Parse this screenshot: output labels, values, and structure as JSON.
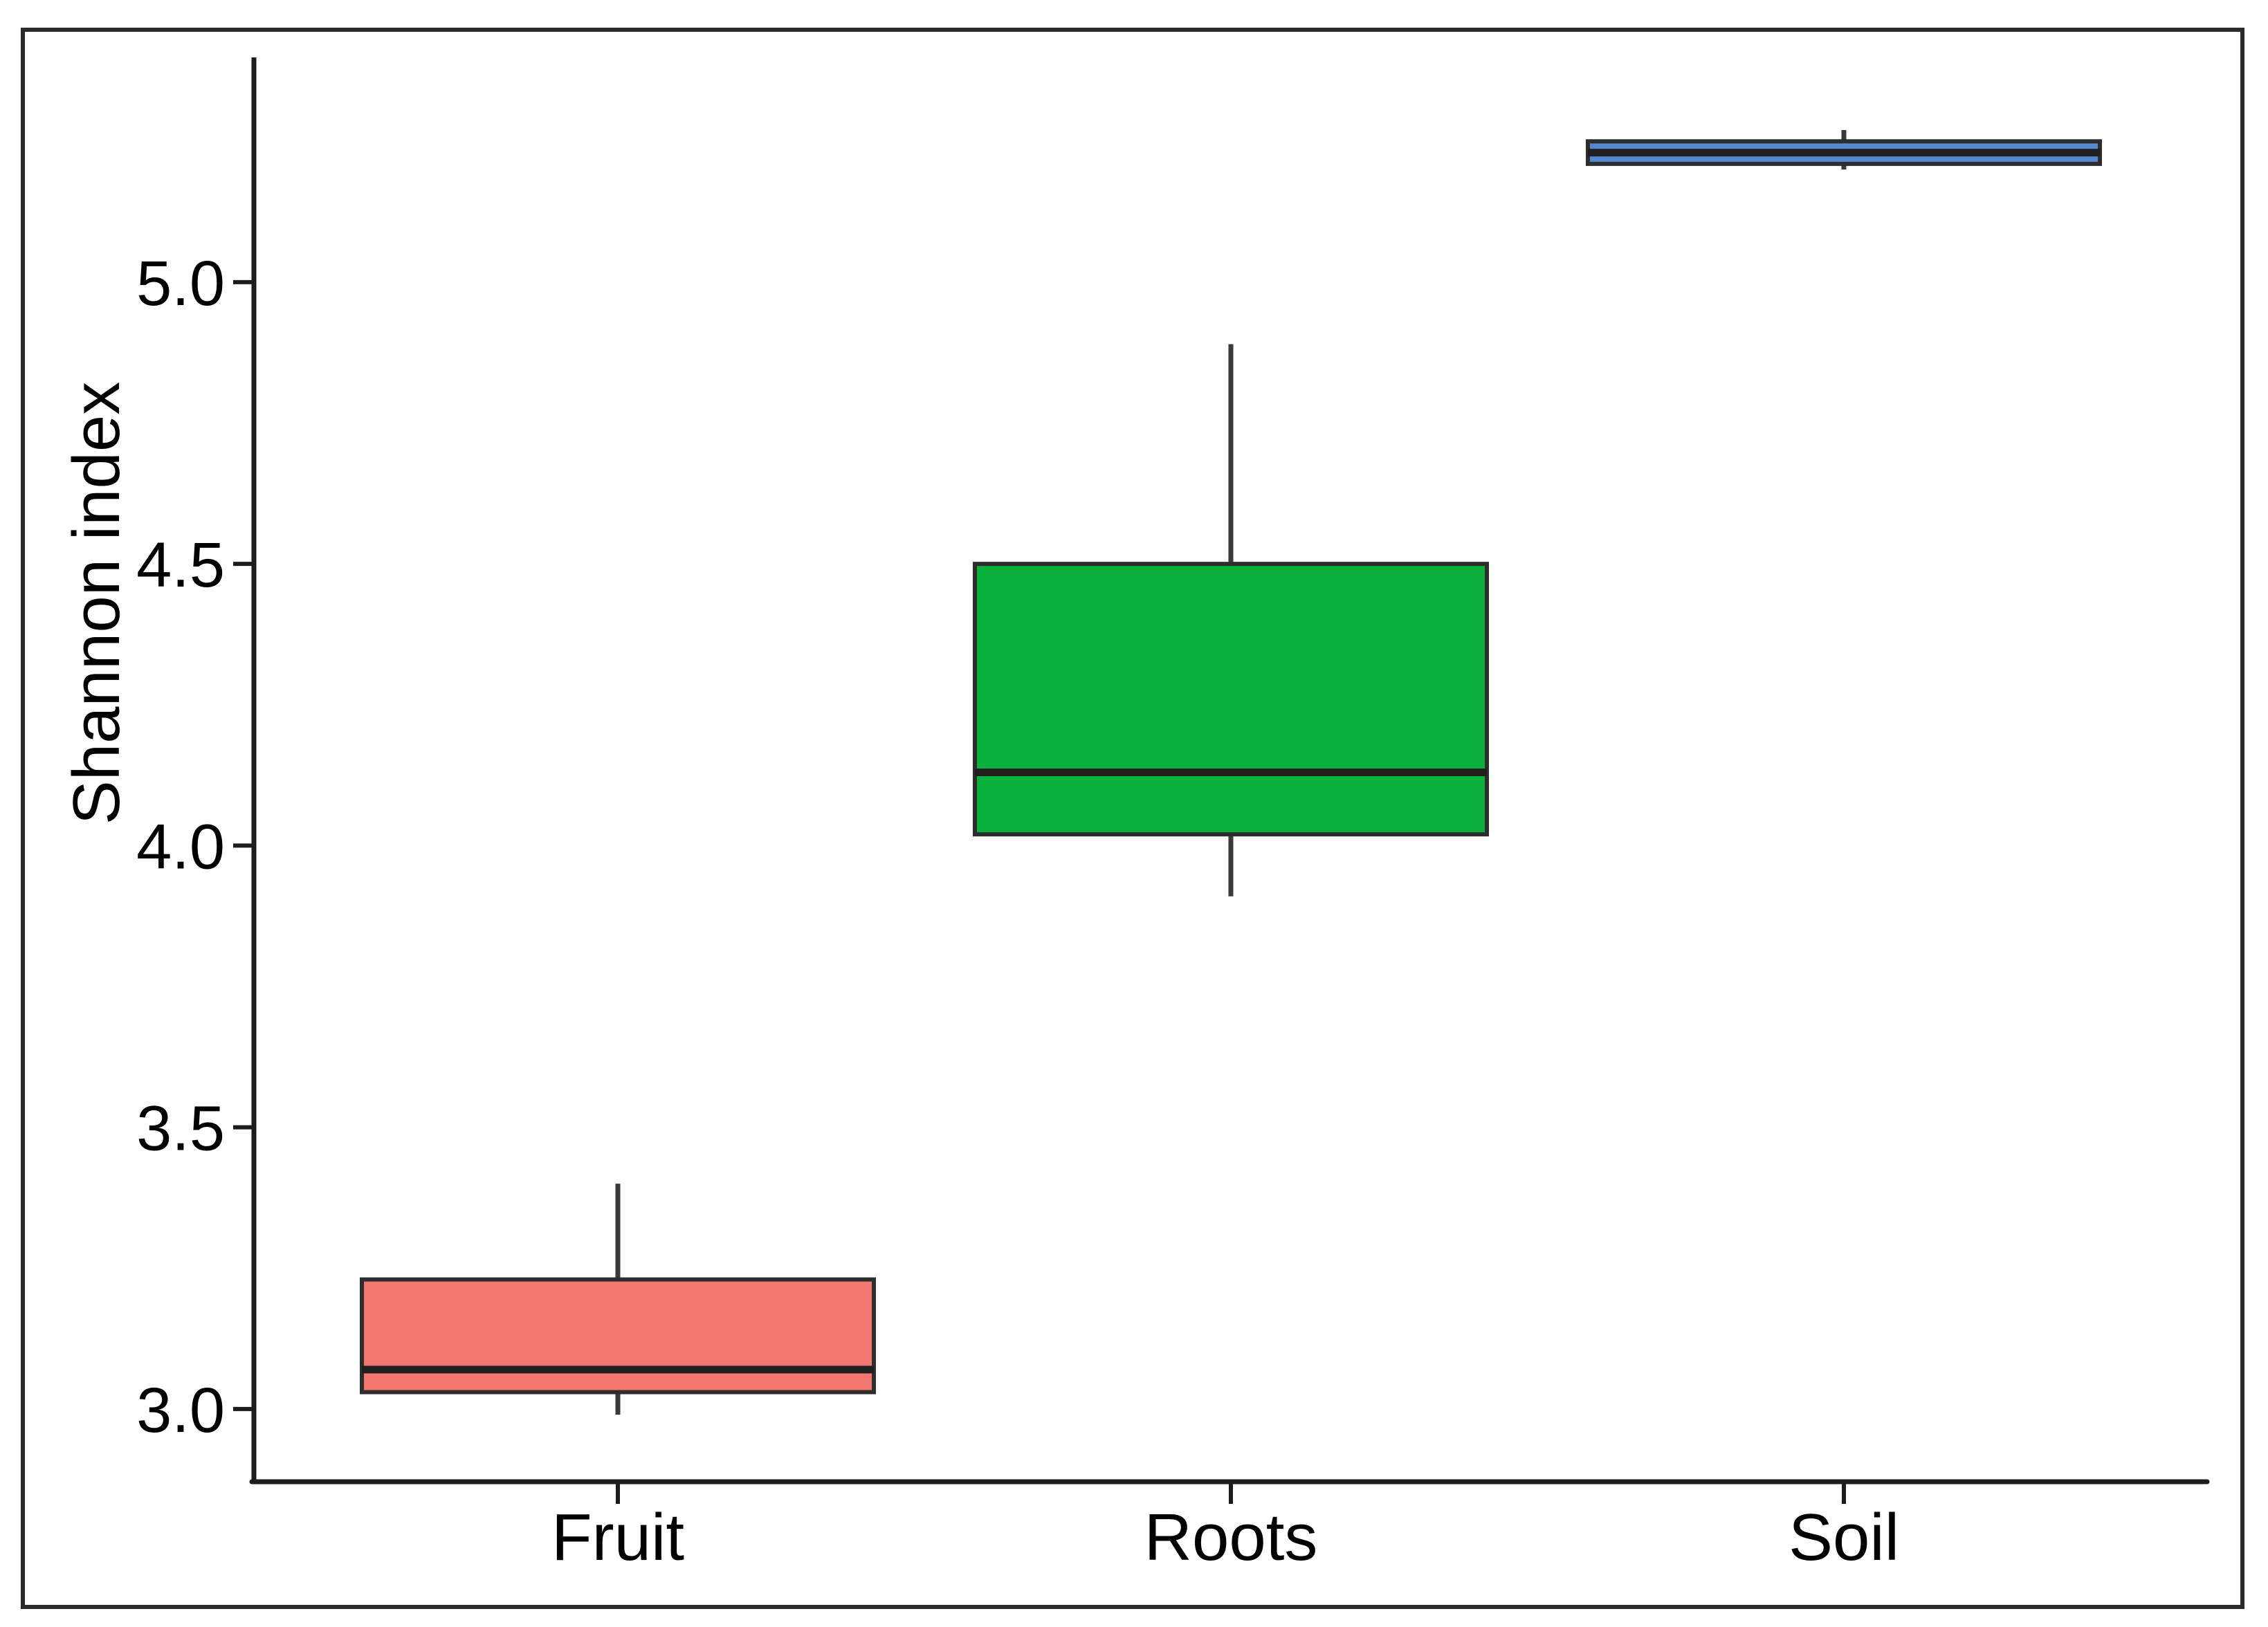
{
  "figure": {
    "background": "#ffffff",
    "border_color": "#2b2b2b"
  },
  "chart_data": {
    "type": "boxplot",
    "title": "",
    "xlabel": "",
    "ylabel": "Shannon index",
    "categories": [
      "Fruit",
      "Roots",
      "Soil"
    ],
    "y_ticks": [
      5.0,
      4.5,
      4.0,
      3.5,
      3.0
    ],
    "y_tick_labels": [
      "5.0",
      "4.5",
      "4.0",
      "3.5",
      "3.0"
    ],
    "ylim": [
      2.87,
      5.4
    ],
    "grid": false,
    "legend": "none",
    "axis_color": "#1c1c1c",
    "box_border_color": "#2d2d2d",
    "median_color": "#1f1f1f",
    "whisker_color": "#3a3a3a",
    "text_color": "#000000",
    "series": [
      {
        "name": "Fruit",
        "color": "#f4776f",
        "min": 2.99,
        "q1": 3.03,
        "median": 3.07,
        "q3": 3.23,
        "max": 3.4,
        "outliers": []
      },
      {
        "name": "Roots",
        "color": "#0bb13d",
        "min": 3.91,
        "q1": 4.02,
        "median": 4.13,
        "q3": 4.5,
        "max": 4.89,
        "outliers": []
      },
      {
        "name": "Soil",
        "color": "#5687d1",
        "min": 5.2,
        "q1": 5.21,
        "median": 5.23,
        "q3": 5.25,
        "max": 5.27,
        "outliers": []
      }
    ]
  }
}
